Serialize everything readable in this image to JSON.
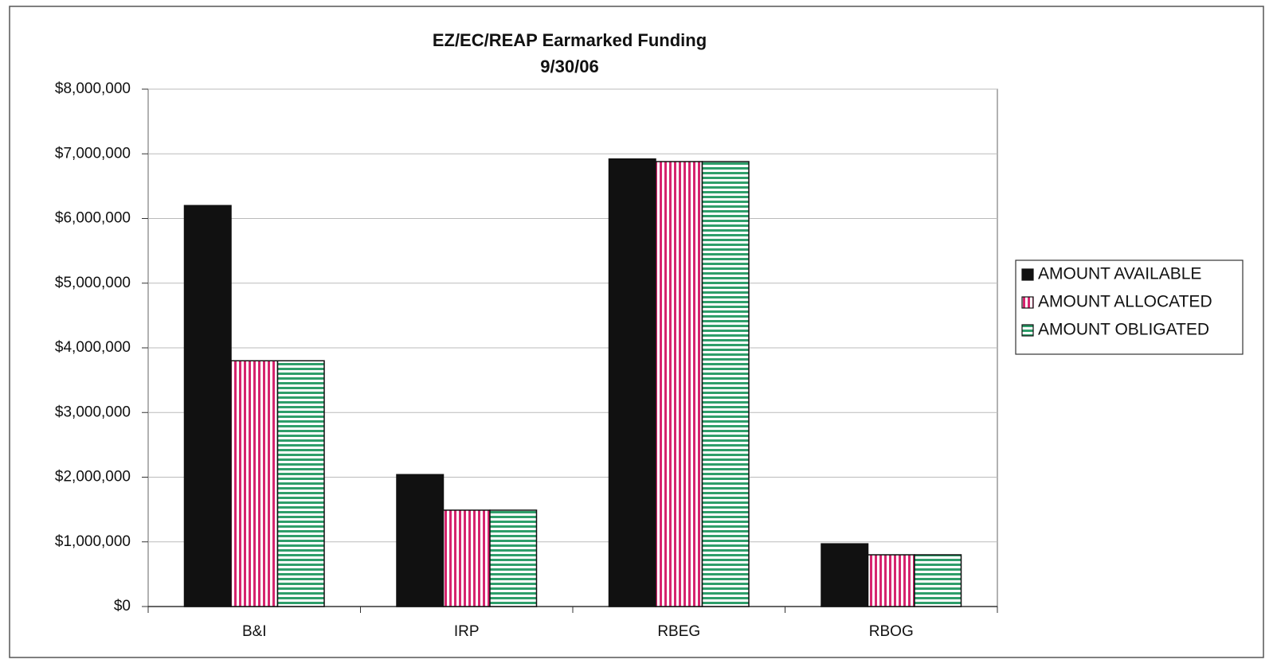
{
  "chart_data": {
    "type": "bar",
    "title": "EZ/EC/REAP Earmarked Funding",
    "subtitle": "9/30/06",
    "categories": [
      "B&I",
      "IRP",
      "RBEG",
      "RBOG"
    ],
    "series": [
      {
        "name": "AMOUNT AVAILABLE",
        "color": "#111111",
        "pattern": "solid",
        "values": [
          6200000,
          2040000,
          6920000,
          970000
        ]
      },
      {
        "name": "AMOUNT ALLOCATED",
        "color": "#d6246e",
        "pattern": "vertical",
        "values": [
          3800000,
          1490000,
          6880000,
          800000
        ]
      },
      {
        "name": "AMOUNT OBLIGATED",
        "color": "#2e9e6a",
        "pattern": "horizontal",
        "values": [
          3800000,
          1490000,
          6880000,
          800000
        ]
      }
    ],
    "ylim": [
      0,
      8000000
    ],
    "yticks": [
      {
        "value": 0,
        "label": "$0"
      },
      {
        "value": 1000000,
        "label": "$1,000,000"
      },
      {
        "value": 2000000,
        "label": "$2,000,000"
      },
      {
        "value": 3000000,
        "label": "$3,000,000"
      },
      {
        "value": 4000000,
        "label": "$4,000,000"
      },
      {
        "value": 5000000,
        "label": "$5,000,000"
      },
      {
        "value": 6000000,
        "label": "$6,000,000"
      },
      {
        "value": 7000000,
        "label": "$7,000,000"
      },
      {
        "value": 8000000,
        "label": "$8,000,000"
      }
    ],
    "grid": true,
    "legend": "right"
  }
}
